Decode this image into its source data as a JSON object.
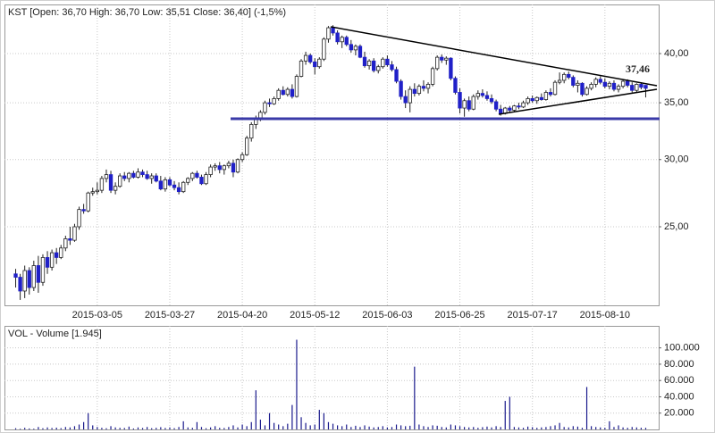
{
  "chart_data": {
    "type": "candlestick",
    "title": "KST [Open: 36,70 High: 36,70 Low: 35,51 Close: 36,40] (-1,5%)",
    "annotation": "37,46",
    "log_scale": true,
    "grid": true,
    "up_color": "#ffffff",
    "down_color": "#2020c8",
    "ylim": [
      20.2,
      45.7
    ],
    "yticks": [
      {
        "value": 25,
        "label": "25,00"
      },
      {
        "value": 30,
        "label": "30,00"
      },
      {
        "value": 35,
        "label": "35,00"
      },
      {
        "value": 40,
        "label": "40,00"
      }
    ],
    "categories": [
      null,
      null,
      null,
      null,
      null,
      null,
      null,
      null,
      null,
      null,
      null,
      null,
      null,
      null,
      null,
      null,
      null,
      null,
      "2015-03-05",
      null,
      null,
      null,
      null,
      null,
      null,
      null,
      null,
      null,
      null,
      null,
      null,
      null,
      null,
      null,
      "2015-03-27",
      null,
      null,
      null,
      null,
      null,
      null,
      null,
      null,
      null,
      null,
      null,
      null,
      null,
      null,
      null,
      "2015-04-20",
      null,
      null,
      null,
      null,
      null,
      null,
      null,
      null,
      null,
      null,
      null,
      null,
      null,
      null,
      null,
      "2015-05-12",
      null,
      null,
      null,
      null,
      null,
      null,
      null,
      null,
      null,
      null,
      null,
      null,
      null,
      null,
      null,
      "2015-06-03",
      null,
      null,
      null,
      null,
      null,
      null,
      null,
      null,
      null,
      null,
      null,
      null,
      null,
      null,
      null,
      "2015-06-25",
      null,
      null,
      null,
      null,
      null,
      null,
      null,
      null,
      null,
      null,
      null,
      null,
      null,
      null,
      null,
      "2015-07-17",
      null,
      null,
      null,
      null,
      null,
      null,
      null,
      null,
      null,
      null,
      null,
      null,
      null,
      null,
      null,
      "2015-08-10",
      null,
      null,
      null,
      null,
      null,
      null,
      null,
      null,
      null
    ],
    "ohlc": [
      [
        22.0,
        22.3,
        21.2,
        21.8
      ],
      [
        21.8,
        22.0,
        20.5,
        21.0
      ],
      [
        21.0,
        22.5,
        20.6,
        22.2
      ],
      [
        22.2,
        22.4,
        20.8,
        21.2
      ],
      [
        21.2,
        22.8,
        21.0,
        22.5
      ],
      [
        22.5,
        23.1,
        20.9,
        21.5
      ],
      [
        21.5,
        23.2,
        21.3,
        23.0
      ],
      [
        23.0,
        23.4,
        22.0,
        22.4
      ],
      [
        22.4,
        23.5,
        22.2,
        23.3
      ],
      [
        23.3,
        23.6,
        22.6,
        23.0
      ],
      [
        23.0,
        23.8,
        22.9,
        23.6
      ],
      [
        23.6,
        24.4,
        23.4,
        24.2
      ],
      [
        24.2,
        25.0,
        23.8,
        24.1
      ],
      [
        24.1,
        25.2,
        24.0,
        25.0
      ],
      [
        25.0,
        26.4,
        24.8,
        26.2
      ],
      [
        26.2,
        26.6,
        25.9,
        26.1
      ],
      [
        26.1,
        27.5,
        26.0,
        27.4
      ],
      [
        27.4,
        27.8,
        27.2,
        27.5
      ],
      [
        27.5,
        28.2,
        27.3,
        27.6
      ],
      [
        27.6,
        28.7,
        27.4,
        28.5
      ],
      [
        28.5,
        29.2,
        28.2,
        28.8
      ],
      [
        28.8,
        29.1,
        27.4,
        27.6
      ],
      [
        27.6,
        28.2,
        27.3,
        27.9
      ],
      [
        27.9,
        28.9,
        27.8,
        28.7
      ],
      [
        28.7,
        29.0,
        28.3,
        28.5
      ],
      [
        28.5,
        29.0,
        28.2,
        28.9
      ],
      [
        28.9,
        29.1,
        28.5,
        28.6
      ],
      [
        28.6,
        29.3,
        28.5,
        29.0
      ],
      [
        29.0,
        29.2,
        28.6,
        28.8
      ],
      [
        28.8,
        29.1,
        28.4,
        28.5
      ],
      [
        28.5,
        28.9,
        28.1,
        28.7
      ],
      [
        28.7,
        28.9,
        28.2,
        28.3
      ],
      [
        28.3,
        28.7,
        27.6,
        27.7
      ],
      [
        27.7,
        28.6,
        27.5,
        28.4
      ],
      [
        28.4,
        28.6,
        27.9,
        28.0
      ],
      [
        28.0,
        28.3,
        27.6,
        27.8
      ],
      [
        27.8,
        28.2,
        27.3,
        27.5
      ],
      [
        27.5,
        28.3,
        27.4,
        28.2
      ],
      [
        28.2,
        28.6,
        28.0,
        28.5
      ],
      [
        28.5,
        29.0,
        28.3,
        28.9
      ],
      [
        28.9,
        29.1,
        28.5,
        28.6
      ],
      [
        28.6,
        28.8,
        28.0,
        28.1
      ],
      [
        28.1,
        29.0,
        28.0,
        28.8
      ],
      [
        28.8,
        29.6,
        28.6,
        29.4
      ],
      [
        29.4,
        29.7,
        29.1,
        29.5
      ],
      [
        29.5,
        29.8,
        28.9,
        29.2
      ],
      [
        29.2,
        29.6,
        28.8,
        29.5
      ],
      [
        29.5,
        29.9,
        29.3,
        29.7
      ],
      [
        29.7,
        30.0,
        28.6,
        29.0
      ],
      [
        29.0,
        30.1,
        28.9,
        30.0
      ],
      [
        30.0,
        30.6,
        29.8,
        30.4
      ],
      [
        30.4,
        32.0,
        30.3,
        31.8
      ],
      [
        31.8,
        33.2,
        31.5,
        33.0
      ],
      [
        33.0,
        33.8,
        32.6,
        33.5
      ],
      [
        33.5,
        34.3,
        33.3,
        34.1
      ],
      [
        34.1,
        35.2,
        33.9,
        35.0
      ],
      [
        35.0,
        35.4,
        34.6,
        34.9
      ],
      [
        34.9,
        35.6,
        34.8,
        35.4
      ],
      [
        35.4,
        36.4,
        35.2,
        36.2
      ],
      [
        36.2,
        36.6,
        35.7,
        35.8
      ],
      [
        35.8,
        36.5,
        35.6,
        36.3
      ],
      [
        36.3,
        36.8,
        35.4,
        35.6
      ],
      [
        35.6,
        37.8,
        35.5,
        37.6
      ],
      [
        37.6,
        39.4,
        37.5,
        39.2
      ],
      [
        39.2,
        40.2,
        38.8,
        39.8
      ],
      [
        39.8,
        40.0,
        38.9,
        39.1
      ],
      [
        39.1,
        39.5,
        37.8,
        38.6
      ],
      [
        38.6,
        39.6,
        38.4,
        39.4
      ],
      [
        39.4,
        41.8,
        39.2,
        41.6
      ],
      [
        41.6,
        43.1,
        41.2,
        42.9
      ],
      [
        42.9,
        43.2,
        42.0,
        42.3
      ],
      [
        42.3,
        42.6,
        41.0,
        41.3
      ],
      [
        41.3,
        42.0,
        40.6,
        41.8
      ],
      [
        41.8,
        42.0,
        40.8,
        41.0
      ],
      [
        41.0,
        41.5,
        40.1,
        40.4
      ],
      [
        40.4,
        41.0,
        39.8,
        40.8
      ],
      [
        40.8,
        41.0,
        39.5,
        39.6
      ],
      [
        39.6,
        40.2,
        38.5,
        38.7
      ],
      [
        38.7,
        39.4,
        38.3,
        39.2
      ],
      [
        39.2,
        39.5,
        38.0,
        38.2
      ],
      [
        38.2,
        38.8,
        37.9,
        38.6
      ],
      [
        38.6,
        39.6,
        38.4,
        39.4
      ],
      [
        39.4,
        39.8,
        38.6,
        38.8
      ],
      [
        38.8,
        39.2,
        38.1,
        38.3
      ],
      [
        38.3,
        38.6,
        36.9,
        37.1
      ],
      [
        37.1,
        37.3,
        35.3,
        35.6
      ],
      [
        35.6,
        36.2,
        34.5,
        35.0
      ],
      [
        35.0,
        36.6,
        34.1,
        36.3
      ],
      [
        36.3,
        36.9,
        35.6,
        35.9
      ],
      [
        35.9,
        36.8,
        35.7,
        36.6
      ],
      [
        36.6,
        37.2,
        36.1,
        36.4
      ],
      [
        36.4,
        37.0,
        35.9,
        36.8
      ],
      [
        36.8,
        38.6,
        36.6,
        38.4
      ],
      [
        38.4,
        39.8,
        38.2,
        39.6
      ],
      [
        39.6,
        39.9,
        39.0,
        39.3
      ],
      [
        39.3,
        39.7,
        38.8,
        39.5
      ],
      [
        39.5,
        39.6,
        37.2,
        37.4
      ],
      [
        37.4,
        37.6,
        35.8,
        36.0
      ],
      [
        36.0,
        36.4,
        34.0,
        34.5
      ],
      [
        34.5,
        35.4,
        33.7,
        35.2
      ],
      [
        35.2,
        35.6,
        34.2,
        34.4
      ],
      [
        34.4,
        35.8,
        34.3,
        35.6
      ],
      [
        35.6,
        36.2,
        35.3,
        35.9
      ],
      [
        35.9,
        36.3,
        35.5,
        35.7
      ],
      [
        35.7,
        36.1,
        35.2,
        35.4
      ],
      [
        35.4,
        35.8,
        34.9,
        35.1
      ],
      [
        35.1,
        35.3,
        34.2,
        34.4
      ],
      [
        34.4,
        34.8,
        33.8,
        34.0
      ],
      [
        34.0,
        34.6,
        33.9,
        34.5
      ],
      [
        34.5,
        34.7,
        34.1,
        34.3
      ],
      [
        34.3,
        34.8,
        34.2,
        34.7
      ],
      [
        34.7,
        35.0,
        34.4,
        34.6
      ],
      [
        34.6,
        35.2,
        34.5,
        35.0
      ],
      [
        35.0,
        35.6,
        34.8,
        35.4
      ],
      [
        35.4,
        35.7,
        35.0,
        35.2
      ],
      [
        35.2,
        35.6,
        34.9,
        35.5
      ],
      [
        35.5,
        35.9,
        35.2,
        35.3
      ],
      [
        35.3,
        36.2,
        35.2,
        36.0
      ],
      [
        36.0,
        36.4,
        35.6,
        35.8
      ],
      [
        35.8,
        37.2,
        35.7,
        37.0
      ],
      [
        37.0,
        38.0,
        36.8,
        37.2
      ],
      [
        37.2,
        38.0,
        36.9,
        37.8
      ],
      [
        37.8,
        38.1,
        37.3,
        37.5
      ],
      [
        37.5,
        37.7,
        36.5,
        36.7
      ],
      [
        36.7,
        37.2,
        36.0,
        36.9
      ],
      [
        36.9,
        37.0,
        35.6,
        35.8
      ],
      [
        35.8,
        36.6,
        35.7,
        36.4
      ],
      [
        36.4,
        37.0,
        36.2,
        36.8
      ],
      [
        36.8,
        37.5,
        36.5,
        37.3
      ],
      [
        37.3,
        37.6,
        36.8,
        37.0
      ],
      [
        37.0,
        37.4,
        36.4,
        36.6
      ],
      [
        36.6,
        37.1,
        36.3,
        36.9
      ],
      [
        36.9,
        37.2,
        36.1,
        36.3
      ],
      [
        36.3,
        36.8,
        36.0,
        36.6
      ],
      [
        36.6,
        37.3,
        36.4,
        37.1
      ],
      [
        37.1,
        37.3,
        36.5,
        36.7
      ],
      [
        36.7,
        37.0,
        36.0,
        36.2
      ],
      [
        36.2,
        36.9,
        36.0,
        36.8
      ],
      [
        36.8,
        37.0,
        36.3,
        36.5
      ],
      [
        36.7,
        36.7,
        35.51,
        36.4
      ]
    ],
    "volume": {
      "title": "VOL - Volume [1.945]",
      "color": "#1a1a8c",
      "ylim": [
        0,
        127000
      ],
      "yticks": [
        {
          "value": 20000,
          "label": "20.000"
        },
        {
          "value": 40000,
          "label": "40.000"
        },
        {
          "value": 60000,
          "label": "60.000"
        },
        {
          "value": 80000,
          "label": "80.000"
        },
        {
          "value": 100000,
          "label": "100.000"
        }
      ],
      "values": [
        1500,
        800,
        2000,
        1200,
        900,
        3000,
        1500,
        2500,
        1800,
        2200,
        1600,
        3000,
        2500,
        4000,
        6000,
        9000,
        20000,
        5000,
        3000,
        2000,
        1500,
        4000,
        2500,
        2000,
        1800,
        3500,
        1200,
        2500,
        1800,
        3000,
        1500,
        2000,
        2800,
        1800,
        2500,
        1600,
        3000,
        10000,
        2500,
        2000,
        9000,
        3000,
        1500,
        2500,
        4000,
        2000,
        1800,
        3000,
        5000,
        2500,
        6000,
        4000,
        9000,
        48000,
        12000,
        5000,
        20000,
        8000,
        6000,
        4000,
        7000,
        30000,
        110000,
        15000,
        8000,
        5000,
        6000,
        24000,
        20000,
        9000,
        7000,
        5000,
        4000,
        6000,
        3000,
        4500,
        3000,
        5000,
        3500,
        2500,
        3000,
        4000,
        2500,
        3000,
        6000,
        5000,
        4000,
        4500,
        77000,
        6000,
        4000,
        3000,
        5000,
        4500,
        3000,
        2500,
        6000,
        5000,
        4000,
        3000,
        2500,
        3000,
        2000,
        2800,
        3500,
        2500,
        4000,
        3000,
        35000,
        40000,
        3000,
        2500,
        2000,
        3500,
        2800,
        2000,
        2500,
        3000,
        4000,
        5000,
        8000,
        3000,
        2500,
        4000,
        3500,
        2000,
        52000,
        4000,
        3000,
        2500,
        2000,
        10000,
        3000,
        5000,
        2500,
        2000,
        3000,
        2500,
        2000,
        1945
      ]
    }
  }
}
